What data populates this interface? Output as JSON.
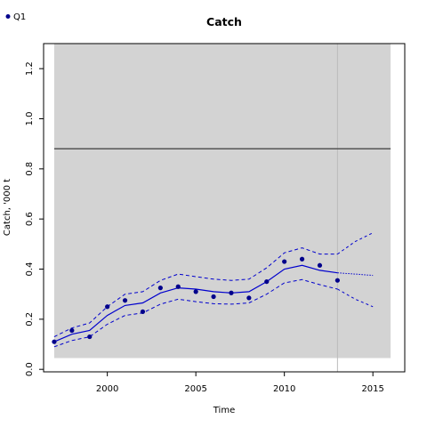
{
  "chart_data": {
    "type": "line",
    "title": "Catch",
    "xlabel": "Time",
    "ylabel": "Catch, '000 t",
    "xlim": [
      1996.4,
      2016.8
    ],
    "ylim": [
      -0.01,
      1.3
    ],
    "x_ticks": [
      2000,
      2005,
      2010,
      2015
    ],
    "x_tick_labels": [
      "2000",
      "2005",
      "2010",
      "2015"
    ],
    "y_ticks": [
      0.0,
      0.2,
      0.4,
      0.6,
      0.8,
      1.0,
      1.2
    ],
    "y_tick_labels": [
      "0.0",
      "0.2",
      "0.4",
      "0.6",
      "0.8",
      "1.0",
      "1.2"
    ],
    "shaded_region": {
      "x": [
        1997,
        2016
      ],
      "y": [
        0.045,
        1.3
      ]
    },
    "horizontal_line": {
      "y": 0.88
    },
    "vertical_line": {
      "x": 2013
    },
    "legend": {
      "placement": "top-left",
      "entries": [
        "Q1"
      ]
    },
    "observed": {
      "name": "Q1",
      "x": [
        1997,
        1998,
        1999,
        2000,
        2001,
        2002,
        2003,
        2004,
        2005,
        2006,
        2007,
        2008,
        2009,
        2010,
        2011,
        2012,
        2013
      ],
      "y": [
        0.11,
        0.155,
        0.13,
        0.25,
        0.275,
        0.23,
        0.325,
        0.33,
        0.31,
        0.29,
        0.305,
        0.285,
        0.35,
        0.43,
        0.44,
        0.415,
        0.355
      ]
    },
    "fit": {
      "x": [
        1997,
        1998,
        1999,
        2000,
        2001,
        2002,
        2003,
        2004,
        2005,
        2006,
        2007,
        2008,
        2009,
        2010,
        2011,
        2012,
        2013
      ],
      "mean": [
        0.11,
        0.14,
        0.155,
        0.215,
        0.255,
        0.265,
        0.305,
        0.325,
        0.32,
        0.31,
        0.305,
        0.31,
        0.35,
        0.4,
        0.415,
        0.395,
        0.385
      ],
      "lower": [
        0.09,
        0.115,
        0.13,
        0.18,
        0.215,
        0.225,
        0.26,
        0.28,
        0.27,
        0.262,
        0.26,
        0.265,
        0.3,
        0.345,
        0.358,
        0.338,
        0.32
      ],
      "upper": [
        0.13,
        0.165,
        0.185,
        0.25,
        0.3,
        0.31,
        0.355,
        0.38,
        0.37,
        0.36,
        0.355,
        0.36,
        0.405,
        0.465,
        0.485,
        0.46,
        0.46
      ]
    },
    "projection": {
      "x": [
        2013,
        2014,
        2015
      ],
      "mean": [
        0.385,
        0.38,
        0.375
      ],
      "lower": [
        0.32,
        0.28,
        0.25
      ],
      "upper": [
        0.46,
        0.51,
        0.545
      ]
    },
    "colors": {
      "series": "#0000cd",
      "point": "#00008b",
      "shade": "#d3d3d3",
      "hline": "#555555",
      "vline": "#bbbbbb",
      "frame": "#000000"
    }
  }
}
